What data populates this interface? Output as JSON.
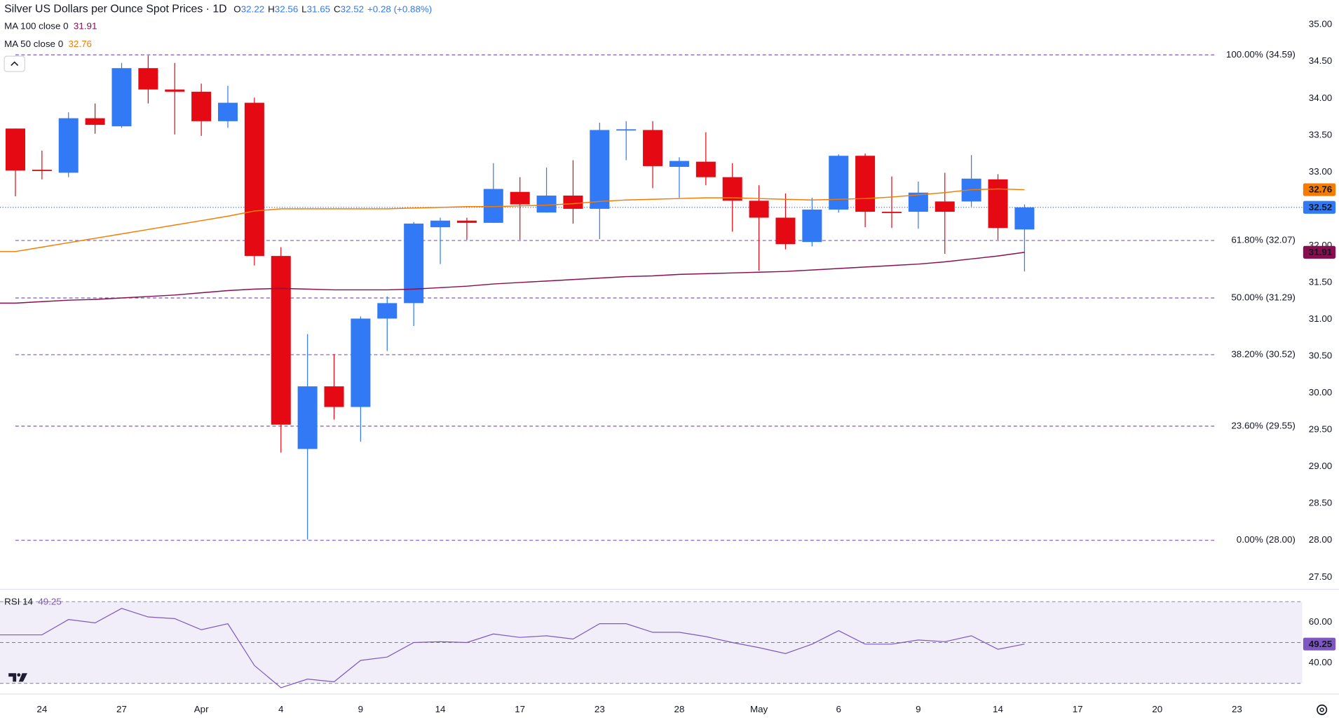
{
  "chart_data": [
    {
      "type": "candlestick",
      "title": "Silver US Dollars per Ounce Spot Prices · 1D",
      "stats": [
        {
          "label": "O",
          "value": 32.22
        },
        {
          "label": "H",
          "value": 32.56
        },
        {
          "label": "L",
          "value": 31.65
        },
        {
          "label": "C",
          "value": 32.52
        }
      ],
      "change": "+0.28 (+0.88%)",
      "up_color": "#3179f5",
      "down_color": "#e50913",
      "open": [
        33.59,
        33.03,
        32.99,
        33.73,
        33.62,
        34.41,
        34.12,
        34.09,
        33.69,
        33.94,
        31.86,
        29.24,
        30.09,
        29.81,
        31.01,
        31.22,
        32.25,
        32.34,
        32.31,
        32.73,
        32.45,
        32.68,
        32.5,
        33.57,
        33.57,
        33.07,
        33.14,
        32.93,
        32.61,
        32.38,
        32.05,
        32.49,
        33.22,
        32.46,
        32.46,
        32.6,
        32.6,
        32.9,
        32.22
      ],
      "high": [
        33.59,
        33.29,
        33.81,
        33.93,
        34.48,
        34.58,
        34.48,
        34.2,
        34.17,
        34.01,
        31.98,
        30.8,
        30.53,
        31.04,
        31.31,
        32.32,
        32.38,
        32.38,
        33.12,
        32.93,
        33.06,
        33.16,
        33.67,
        33.69,
        33.69,
        33.2,
        33.54,
        33.12,
        32.82,
        32.71,
        32.65,
        33.24,
        33.25,
        32.94,
        32.87,
        32.99,
        33.23,
        32.97,
        32.56
      ],
      "low": [
        32.67,
        32.9,
        32.93,
        33.52,
        33.6,
        33.93,
        33.51,
        33.49,
        33.6,
        31.73,
        29.19,
        28.01,
        29.64,
        29.34,
        30.57,
        30.91,
        31.75,
        32.08,
        32.31,
        32.08,
        32.45,
        32.3,
        32.09,
        33.16,
        32.78,
        32.65,
        32.82,
        32.19,
        31.66,
        31.95,
        31.99,
        32.45,
        32.25,
        32.24,
        32.23,
        31.89,
        32.53,
        32.08,
        31.65
      ],
      "close": [
        33.02,
        33.02,
        33.73,
        33.64,
        34.41,
        34.12,
        34.09,
        33.69,
        33.94,
        31.86,
        29.57,
        30.09,
        29.81,
        31.01,
        31.22,
        32.3,
        32.34,
        32.31,
        32.77,
        32.56,
        32.68,
        32.5,
        33.57,
        33.58,
        33.08,
        33.15,
        32.93,
        32.61,
        32.38,
        32.02,
        32.49,
        33.22,
        32.46,
        32.45,
        32.72,
        32.46,
        32.91,
        32.24,
        32.52
      ],
      "series": [
        {
          "name": "MA 100 close 0",
          "color": "#880e4f",
          "values": [
            31.22,
            31.24,
            31.26,
            31.27,
            31.29,
            31.31,
            31.33,
            31.36,
            31.39,
            31.41,
            31.42,
            31.41,
            31.4,
            31.4,
            31.4,
            31.41,
            31.43,
            31.45,
            31.48,
            31.5,
            31.52,
            31.54,
            31.56,
            31.58,
            31.59,
            31.61,
            31.62,
            31.63,
            31.64,
            31.65,
            31.67,
            31.69,
            31.71,
            31.73,
            31.75,
            31.78,
            31.82,
            31.86,
            31.91
          ]
        },
        {
          "name": "MA 50 close 0",
          "color": "#f57c00",
          "values": [
            31.92,
            31.98,
            32.04,
            32.1,
            32.16,
            32.22,
            32.28,
            32.34,
            32.4,
            32.47,
            32.5,
            32.5,
            32.5,
            32.5,
            32.5,
            32.51,
            32.52,
            32.53,
            32.53,
            32.54,
            32.55,
            32.57,
            32.6,
            32.62,
            32.63,
            32.64,
            32.65,
            32.65,
            32.64,
            32.63,
            32.62,
            32.63,
            32.64,
            32.66,
            32.69,
            32.72,
            32.76,
            32.77,
            32.76
          ]
        }
      ],
      "fib_color": "#7e57c2",
      "fib_levels": [
        {
          "value": 34.59,
          "label": "100.00% (34.59)"
        },
        {
          "value": 32.07,
          "label": "61.80% (32.07)"
        },
        {
          "value": 31.29,
          "label": "50.00% (31.29)"
        },
        {
          "value": 30.52,
          "label": "38.20% (30.52)"
        },
        {
          "value": 29.55,
          "label": "23.60% (29.55)"
        },
        {
          "value": 28.0,
          "label": "0.00% (28.00)"
        }
      ],
      "xlim": [
        -0.58,
        48.46
      ],
      "ylim": [
        27.34,
        35.335
      ],
      "yticks": [
        {
          "value": 27.5,
          "label": "27.50"
        },
        {
          "value": 28,
          "label": "28.00"
        },
        {
          "value": 28.5,
          "label": "28.50"
        },
        {
          "value": 29,
          "label": "29.00"
        },
        {
          "value": 29.5,
          "label": "29.50"
        },
        {
          "value": 30,
          "label": "30.00"
        },
        {
          "value": 30.5,
          "label": "30.50"
        },
        {
          "value": 31,
          "label": "31.00"
        },
        {
          "value": 31.5,
          "label": "31.50"
        },
        {
          "value": 32,
          "label": "32.00"
        },
        {
          "value": 32.5,
          "label": "32.50"
        },
        {
          "value": 33,
          "label": "33.00"
        },
        {
          "value": 33.5,
          "label": "33.50"
        },
        {
          "value": 34,
          "label": "34.00"
        },
        {
          "value": 34.5,
          "label": "34.50"
        },
        {
          "value": 35,
          "label": "35.00"
        }
      ]
    },
    {
      "type": "line",
      "series": [
        {
          "name": "RSI 14",
          "color": "#7e57c2",
          "values": [
            53.75,
            53.75,
            61.25,
            59.6,
            66.7,
            62.5,
            61.7,
            56.25,
            59.2,
            38.75,
            27.9,
            32.1,
            30.8,
            41.25,
            42.9,
            50,
            50.4,
            50,
            54.2,
            52.5,
            53.3,
            51.7,
            59.2,
            59.2,
            55,
            55,
            52.9,
            50,
            47.5,
            44.6,
            49.2,
            55.8,
            49.2,
            49.2,
            51.25,
            50.4,
            53.3,
            46.7,
            49.25
          ]
        }
      ],
      "levels": [
        70,
        50,
        30
      ],
      "xlim": [
        -0.58,
        48.46
      ],
      "ylim": [
        25,
        75.8
      ],
      "yticks": [
        {
          "value": 40,
          "label": "40.00"
        },
        {
          "value": 60,
          "label": "60.00"
        }
      ],
      "xticks": [
        {
          "value": 1,
          "label": "24"
        },
        {
          "value": 4,
          "label": "27"
        },
        {
          "value": 7,
          "label": "Apr"
        },
        {
          "value": 10,
          "label": "4"
        },
        {
          "value": 13,
          "label": "9"
        },
        {
          "value": 16,
          "label": "14"
        },
        {
          "value": 19,
          "label": "17"
        },
        {
          "value": 22,
          "label": "23"
        },
        {
          "value": 25,
          "label": "28"
        },
        {
          "value": 28,
          "label": "May"
        },
        {
          "value": 31,
          "label": "6"
        },
        {
          "value": 34,
          "label": "9"
        },
        {
          "value": 37,
          "label": "14"
        },
        {
          "value": 40,
          "label": "17"
        },
        {
          "value": 43,
          "label": "20"
        },
        {
          "value": 46,
          "label": "23"
        }
      ]
    }
  ]
}
